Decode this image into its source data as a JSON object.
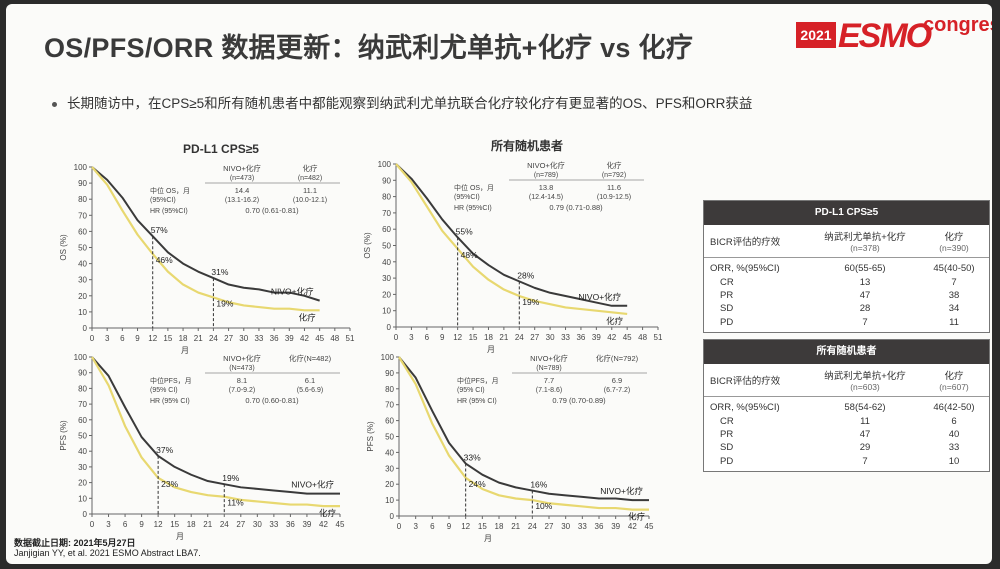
{
  "slide": {
    "title": "OS/PFS/ORR 数据更新：纳武利尤单抗+化疗 vs 化疗",
    "logo": {
      "year": "2021",
      "brand": "ESMO",
      "suffix": "congress"
    },
    "bullet": "长期随访中，在CPS≥5和所有随机患者中都能观察到纳武利尤单抗联合化疗较化疗有更显著的OS、PFS和ORR获益",
    "footnote_date": "数据截止日期: 2021年5月27日",
    "footnote_ref": "Janjigian YY, et al. 2021 ESMO Abstract LBA7."
  },
  "colors": {
    "nivo": "#3a3a3a",
    "chemo": "#e8d870",
    "accent": "#d62127"
  },
  "chart_data": [
    {
      "type": "line",
      "title": "PD-L1 CPS≥5",
      "ylabel": "OS (%)",
      "xlabel": "月",
      "ylim": [
        0,
        100
      ],
      "xlim": [
        0,
        51
      ],
      "xticks": [
        0,
        3,
        6,
        9,
        12,
        15,
        18,
        21,
        24,
        27,
        30,
        33,
        36,
        39,
        42,
        45,
        48,
        51
      ],
      "yticks": [
        0,
        10,
        20,
        30,
        40,
        50,
        60,
        70,
        80,
        90,
        100
      ],
      "series": [
        {
          "name": "NIVO+化疗",
          "color": "#3a3a3a",
          "x": [
            0,
            3,
            6,
            9,
            12,
            15,
            18,
            21,
            24,
            27,
            30,
            33,
            36,
            39,
            42,
            45
          ],
          "y": [
            100,
            92,
            81,
            67,
            57,
            47,
            40,
            35,
            31,
            27,
            25,
            24,
            22,
            22,
            20,
            17
          ]
        },
        {
          "name": "化疗",
          "color": "#e8d870",
          "x": [
            0,
            3,
            6,
            9,
            12,
            15,
            18,
            21,
            24,
            27,
            30,
            33,
            36,
            39,
            42,
            45
          ],
          "y": [
            100,
            89,
            73,
            58,
            46,
            35,
            27,
            22,
            19,
            16,
            14,
            13,
            12,
            12,
            11,
            11
          ]
        }
      ],
      "annotations": [
        {
          "x": 12,
          "y": 57,
          "text": "57%"
        },
        {
          "x": 12,
          "y": 46,
          "text": "46%"
        },
        {
          "x": 24,
          "y": 31,
          "text": "31%"
        },
        {
          "x": 24,
          "y": 19,
          "text": "19%"
        }
      ],
      "legend_labels": {
        "nivo": "NIVO+化疗",
        "chemo": "化疗"
      },
      "stats": {
        "col1": "NIVO+化疗",
        "col1_n": "(n=473)",
        "col2": "化疗",
        "col2_n": "(n=482)",
        "row1_label": "中位 OS，月",
        "row1_sub": "(95%CI)",
        "row1_v1": "14.4",
        "row1_ci1": "(13.1-16.2)",
        "row1_v2": "11.1",
        "row1_ci2": "(10.0-12.1)",
        "hr_label": "HR (95%CI)",
        "hr_value": "0.70 (0.61-0.81)"
      }
    },
    {
      "type": "line",
      "title": "所有随机患者",
      "ylabel": "OS (%)",
      "xlabel": "月",
      "ylim": [
        0,
        100
      ],
      "xlim": [
        0,
        51
      ],
      "xticks": [
        0,
        3,
        6,
        9,
        12,
        15,
        18,
        21,
        24,
        27,
        30,
        33,
        36,
        39,
        42,
        45,
        48,
        51
      ],
      "yticks": [
        0,
        10,
        20,
        30,
        40,
        50,
        60,
        70,
        80,
        90,
        100
      ],
      "series": [
        {
          "name": "NIVO+化疗",
          "color": "#3a3a3a",
          "x": [
            0,
            3,
            6,
            9,
            12,
            15,
            18,
            21,
            24,
            27,
            30,
            33,
            36,
            39,
            42,
            45
          ],
          "y": [
            100,
            91,
            79,
            66,
            55,
            45,
            38,
            32,
            28,
            24,
            21,
            19,
            17,
            15,
            13,
            13
          ]
        },
        {
          "name": "化疗",
          "color": "#e8d870",
          "x": [
            0,
            3,
            6,
            9,
            12,
            15,
            18,
            21,
            24,
            27,
            30,
            33,
            36,
            39,
            42,
            45
          ],
          "y": [
            100,
            89,
            74,
            59,
            48,
            37,
            29,
            23,
            19,
            16,
            14,
            12,
            11,
            10,
            9,
            8
          ]
        }
      ],
      "annotations": [
        {
          "x": 12,
          "y": 55,
          "text": "55%"
        },
        {
          "x": 12,
          "y": 48,
          "text": "48%"
        },
        {
          "x": 24,
          "y": 28,
          "text": "28%"
        },
        {
          "x": 24,
          "y": 19,
          "text": "19%"
        }
      ],
      "legend_labels": {
        "nivo": "NIVO+化疗",
        "chemo": "化疗"
      },
      "stats": {
        "col1": "NIVO+化疗",
        "col1_n": "(n=789)",
        "col2": "化疗",
        "col2_n": "(n=792)",
        "row1_label": "中位 OS，月",
        "row1_sub": "(95%CI)",
        "row1_v1": "13.8",
        "row1_ci1": "(12.4-14.5)",
        "row1_v2": "11.6",
        "row1_ci2": "(10.9-12.5)",
        "hr_label": "HR (95%CI)",
        "hr_value": "0.79 (0.71-0.88)"
      }
    },
    {
      "type": "line",
      "title": "",
      "ylabel": "PFS (%)",
      "xlabel": "月",
      "ylim": [
        0,
        100
      ],
      "xlim": [
        0,
        45
      ],
      "xticks": [
        0,
        3,
        6,
        9,
        12,
        15,
        18,
        21,
        24,
        27,
        30,
        33,
        36,
        39,
        42,
        45
      ],
      "yticks": [
        0,
        10,
        20,
        30,
        40,
        50,
        60,
        70,
        80,
        90,
        100
      ],
      "series": [
        {
          "name": "NIVO+化疗",
          "color": "#3a3a3a",
          "x": [
            0,
            3,
            6,
            9,
            12,
            15,
            18,
            21,
            24,
            27,
            30,
            33,
            36,
            39,
            42,
            45
          ],
          "y": [
            100,
            88,
            68,
            49,
            37,
            30,
            25,
            21,
            19,
            17,
            16,
            15,
            14,
            13,
            13,
            13
          ]
        },
        {
          "name": "化疗",
          "color": "#e8d870",
          "x": [
            0,
            3,
            6,
            9,
            12,
            15,
            18,
            21,
            24,
            27,
            30,
            33,
            36,
            39,
            42,
            45
          ],
          "y": [
            100,
            82,
            56,
            36,
            23,
            17,
            14,
            12,
            11,
            9,
            8,
            7,
            6,
            6,
            5,
            5
          ]
        }
      ],
      "annotations": [
        {
          "x": 12,
          "y": 37,
          "text": "37%"
        },
        {
          "x": 12,
          "y": 23,
          "text": "23%"
        },
        {
          "x": 24,
          "y": 19,
          "text": "19%"
        },
        {
          "x": 24,
          "y": 11,
          "text": "11%"
        }
      ],
      "legend_labels": {
        "nivo": "NIVO+化疗",
        "chemo": "化疗"
      },
      "stats": {
        "col1": "NIVO+化疗",
        "col1_n": "(N=473)",
        "col2": "化疗(N=482)",
        "col2_n": "",
        "row1_label": "中位PFS，月",
        "row1_sub": "(95% CI)",
        "row1_v1": "8.1",
        "row1_ci1": "(7.0-9.2)",
        "row1_v2": "6.1",
        "row1_ci2": "(5.6-6.9)",
        "hr_label": "HR (95% CI)",
        "hr_value": "0.70 (0.60-0.81)"
      }
    },
    {
      "type": "line",
      "title": "",
      "ylabel": "PFS (%)",
      "xlabel": "月",
      "ylim": [
        0,
        100
      ],
      "xlim": [
        0,
        45
      ],
      "xticks": [
        0,
        3,
        6,
        9,
        12,
        15,
        18,
        21,
        24,
        27,
        30,
        33,
        36,
        39,
        42,
        45
      ],
      "yticks": [
        0,
        10,
        20,
        30,
        40,
        50,
        60,
        70,
        80,
        90,
        100
      ],
      "series": [
        {
          "name": "NIVO+化疗",
          "color": "#3a3a3a",
          "x": [
            0,
            3,
            6,
            9,
            12,
            15,
            18,
            21,
            24,
            27,
            30,
            33,
            36,
            39,
            42,
            45
          ],
          "y": [
            100,
            87,
            66,
            46,
            33,
            26,
            21,
            18,
            16,
            14,
            13,
            12,
            11,
            11,
            10,
            10
          ]
        },
        {
          "name": "化疗",
          "color": "#e8d870",
          "x": [
            0,
            3,
            6,
            9,
            12,
            15,
            18,
            21,
            24,
            27,
            30,
            33,
            36,
            39,
            42,
            45
          ],
          "y": [
            100,
            83,
            58,
            38,
            24,
            17,
            13,
            11,
            10,
            8,
            7,
            6,
            5,
            5,
            4,
            4
          ]
        }
      ],
      "annotations": [
        {
          "x": 12,
          "y": 33,
          "text": "33%"
        },
        {
          "x": 12,
          "y": 24,
          "text": "24%"
        },
        {
          "x": 24,
          "y": 16,
          "text": "16%"
        },
        {
          "x": 24,
          "y": 10,
          "text": "10%"
        }
      ],
      "legend_labels": {
        "nivo": "NIVO+化疗",
        "chemo": "化疗"
      },
      "stats": {
        "col1": "NIVO+化疗",
        "col1_n": "(N=789)",
        "col2": "化疗(N=792)",
        "col2_n": "",
        "row1_label": "中位PFS，月",
        "row1_sub": "(95% CI)",
        "row1_v1": "7.7",
        "row1_ci1": "(7.1-8.6)",
        "row1_v2": "6.9",
        "row1_ci2": "(6.7-7.2)",
        "hr_label": "HR (95% CI)",
        "hr_value": "0.79 (0.70-0.89)"
      }
    }
  ],
  "orr_tables": [
    {
      "header": "PD-L1 CPS≥5",
      "col0": "BICR评估的疗效",
      "col1": "纳武利尤单抗+化疗",
      "col1_n": "(n=378)",
      "col2": "化疗",
      "col2_n": "(n=390)",
      "rows": [
        {
          "label": "ORR, %(95%CI)",
          "v1": "60(55-65)",
          "v2": "45(40-50)"
        },
        {
          "label": "CR",
          "v1": "13",
          "v2": "7"
        },
        {
          "label": "PR",
          "v1": "47",
          "v2": "38"
        },
        {
          "label": "SD",
          "v1": "28",
          "v2": "34"
        },
        {
          "label": "PD",
          "v1": "7",
          "v2": "11"
        }
      ]
    },
    {
      "header": "所有随机患者",
      "col0": "BICR评估的疗效",
      "col1": "纳武利尤单抗+化疗",
      "col1_n": "(n=603)",
      "col2": "化疗",
      "col2_n": "(n=607)",
      "rows": [
        {
          "label": "ORR, %(95%CI)",
          "v1": "58(54-62)",
          "v2": "46(42-50)"
        },
        {
          "label": "CR",
          "v1": "11",
          "v2": "6"
        },
        {
          "label": "PR",
          "v1": "47",
          "v2": "40"
        },
        {
          "label": "SD",
          "v1": "29",
          "v2": "33"
        },
        {
          "label": "PD",
          "v1": "7",
          "v2": "10"
        }
      ]
    }
  ]
}
